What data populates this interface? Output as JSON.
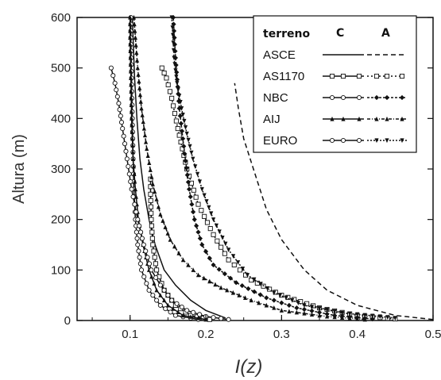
{
  "chart_data": {
    "type": "line",
    "title": "",
    "xlabel": "I(z)",
    "ylabel": "Altura (m)",
    "xlim": [
      0.03,
      0.5
    ],
    "ylim": [
      0,
      600
    ],
    "xticks": [
      0.1,
      0.2,
      0.3,
      0.4,
      0.5
    ],
    "xtick_labels": [
      "0.1",
      "0.2",
      "0.3",
      "0.4",
      "0.5"
    ],
    "yticks": [
      0,
      100,
      200,
      300,
      400,
      500,
      600
    ],
    "ytick_labels": [
      "0",
      "100",
      "200",
      "300",
      "400",
      "500",
      "600"
    ],
    "grid": false,
    "legend": {
      "position": "top-right",
      "title": "terreno",
      "columns": [
        "C",
        "A"
      ],
      "entries": [
        "ASCE",
        "AS1170",
        "NBC",
        "AIJ",
        "EURO"
      ]
    },
    "series": [
      {
        "name": "ASCE",
        "terrain": "C",
        "color": "#111111",
        "dash": "",
        "marker": "none",
        "points": [
          [
            0.226,
            5
          ],
          [
            0.2,
            20
          ],
          [
            0.18,
            40
          ],
          [
            0.16,
            70
          ],
          [
            0.145,
            100
          ],
          [
            0.133,
            150
          ],
          [
            0.125,
            200
          ],
          [
            0.118,
            260
          ],
          [
            0.113,
            320
          ],
          [
            0.109,
            400
          ],
          [
            0.106,
            480
          ],
          [
            0.104,
            560
          ],
          [
            0.103,
            600
          ]
        ]
      },
      {
        "name": "ASCE",
        "terrain": "A",
        "color": "#111111",
        "dash": "6,4",
        "marker": "none",
        "points": [
          [
            0.5,
            2
          ],
          [
            0.45,
            10
          ],
          [
            0.4,
            30
          ],
          [
            0.36,
            60
          ],
          [
            0.33,
            100
          ],
          [
            0.3,
            160
          ],
          [
            0.28,
            220
          ],
          [
            0.265,
            290
          ],
          [
            0.25,
            360
          ],
          [
            0.243,
            420
          ],
          [
            0.238,
            470
          ]
        ]
      },
      {
        "name": "AS1170",
        "terrain": "C",
        "color": "#111111",
        "dash": "",
        "marker": "square",
        "points": [
          [
            0.205,
            2
          ],
          [
            0.18,
            10
          ],
          [
            0.16,
            30
          ],
          [
            0.145,
            60
          ],
          [
            0.135,
            100
          ],
          [
            0.13,
            150
          ],
          [
            0.128,
            200
          ],
          [
            0.127,
            250
          ],
          [
            0.127,
            280
          ]
        ]
      },
      {
        "name": "AS1170",
        "terrain": "A",
        "color": "#111111",
        "dash": "2,3",
        "marker": "square",
        "points": [
          [
            0.45,
            3
          ],
          [
            0.4,
            10
          ],
          [
            0.35,
            25
          ],
          [
            0.3,
            50
          ],
          [
            0.26,
            80
          ],
          [
            0.23,
            120
          ],
          [
            0.21,
            170
          ],
          [
            0.19,
            230
          ],
          [
            0.175,
            300
          ],
          [
            0.163,
            380
          ],
          [
            0.155,
            440
          ],
          [
            0.148,
            480
          ],
          [
            0.142,
            500
          ]
        ]
      },
      {
        "name": "NBC",
        "terrain": "C",
        "color": "#111111",
        "dash": "",
        "marker": "circle",
        "points": [
          [
            0.19,
            2
          ],
          [
            0.16,
            10
          ],
          [
            0.14,
            30
          ],
          [
            0.125,
            60
          ],
          [
            0.115,
            100
          ],
          [
            0.11,
            150
          ],
          [
            0.107,
            200
          ],
          [
            0.105,
            260
          ],
          [
            0.104,
            320
          ],
          [
            0.103,
            400
          ],
          [
            0.102,
            480
          ],
          [
            0.101,
            560
          ],
          [
            0.101,
            600
          ]
        ]
      },
      {
        "name": "NBC",
        "terrain": "A",
        "color": "#111111",
        "dash": "3,2",
        "marker": "diamond",
        "points": [
          [
            0.42,
            3
          ],
          [
            0.37,
            10
          ],
          [
            0.32,
            25
          ],
          [
            0.28,
            45
          ],
          [
            0.24,
            75
          ],
          [
            0.21,
            110
          ],
          [
            0.195,
            150
          ],
          [
            0.185,
            200
          ],
          [
            0.178,
            260
          ],
          [
            0.172,
            330
          ],
          [
            0.165,
            420
          ],
          [
            0.16,
            520
          ],
          [
            0.157,
            600
          ]
        ]
      },
      {
        "name": "AIJ",
        "terrain": "C",
        "color": "#111111",
        "dash": "",
        "marker": "triangle",
        "points": [
          [
            0.2,
            2
          ],
          [
            0.17,
            10
          ],
          [
            0.15,
            30
          ],
          [
            0.135,
            60
          ],
          [
            0.125,
            100
          ],
          [
            0.117,
            150
          ],
          [
            0.111,
            200
          ],
          [
            0.107,
            260
          ],
          [
            0.104,
            320
          ],
          [
            0.102,
            400
          ],
          [
            0.101,
            480
          ],
          [
            0.1,
            560
          ],
          [
            0.1,
            600
          ]
        ]
      },
      {
        "name": "AIJ",
        "terrain": "A",
        "color": "#111111",
        "dash": "4,2,1,2",
        "marker": "triangle",
        "points": [
          [
            0.41,
            2
          ],
          [
            0.36,
            8
          ],
          [
            0.3,
            20
          ],
          [
            0.26,
            40
          ],
          [
            0.22,
            65
          ],
          [
            0.19,
            90
          ],
          [
            0.17,
            120
          ],
          [
            0.153,
            160
          ],
          [
            0.14,
            210
          ],
          [
            0.13,
            270
          ],
          [
            0.122,
            340
          ],
          [
            0.115,
            420
          ],
          [
            0.11,
            500
          ],
          [
            0.107,
            560
          ],
          [
            0.105,
            600
          ]
        ]
      },
      {
        "name": "EURO",
        "terrain": "C",
        "color": "#111111",
        "dash": "",
        "marker": "circle",
        "points": [
          [
            0.23,
            2
          ],
          [
            0.2,
            8
          ],
          [
            0.175,
            20
          ],
          [
            0.155,
            40
          ],
          [
            0.14,
            70
          ],
          [
            0.128,
            100
          ],
          [
            0.118,
            150
          ],
          [
            0.11,
            200
          ],
          [
            0.102,
            260
          ],
          [
            0.096,
            320
          ],
          [
            0.09,
            380
          ],
          [
            0.085,
            430
          ],
          [
            0.08,
            470
          ],
          [
            0.075,
            500
          ]
        ]
      },
      {
        "name": "EURO",
        "terrain": "A",
        "color": "#111111",
        "dash": "2,2",
        "marker": "triangle-down",
        "points": [
          [
            0.45,
            5
          ],
          [
            0.38,
            15
          ],
          [
            0.33,
            30
          ],
          [
            0.29,
            55
          ],
          [
            0.255,
            90
          ],
          [
            0.23,
            140
          ],
          [
            0.21,
            200
          ],
          [
            0.195,
            260
          ],
          [
            0.183,
            320
          ],
          [
            0.175,
            370
          ],
          [
            0.168,
            420
          ],
          [
            0.162,
            470
          ],
          [
            0.158,
            520
          ],
          [
            0.156,
            580
          ],
          [
            0.155,
            600
          ]
        ]
      }
    ]
  }
}
